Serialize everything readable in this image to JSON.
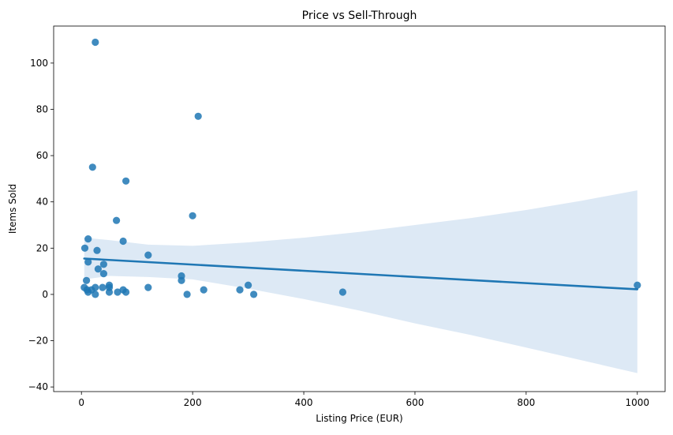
{
  "chart_data": {
    "type": "scatter",
    "title": "Price vs Sell-Through",
    "xlabel": "Listing Price (EUR)",
    "ylabel": "Items Sold",
    "xlim": [
      -50,
      1050
    ],
    "ylim": [
      -42,
      116
    ],
    "xticks": [
      0,
      200,
      400,
      600,
      800,
      1000
    ],
    "yticks": [
      -40,
      -20,
      0,
      20,
      40,
      60,
      80,
      100
    ],
    "grid": false,
    "colors": {
      "points": "#1f77b4",
      "regression_line": "#1f77b4",
      "confidence_band": "#c6dbef"
    },
    "series": [
      {
        "points": [
          {
            "x": 25,
            "y": 109
          },
          {
            "x": 210,
            "y": 77
          },
          {
            "x": 20,
            "y": 55
          },
          {
            "x": 80,
            "y": 49
          },
          {
            "x": 200,
            "y": 34
          },
          {
            "x": 63,
            "y": 32
          },
          {
            "x": 12,
            "y": 24
          },
          {
            "x": 75,
            "y": 23
          },
          {
            "x": 6,
            "y": 20
          },
          {
            "x": 28,
            "y": 19
          },
          {
            "x": 120,
            "y": 17
          },
          {
            "x": 12,
            "y": 14
          },
          {
            "x": 40,
            "y": 13
          },
          {
            "x": 30,
            "y": 11
          },
          {
            "x": 40,
            "y": 9
          },
          {
            "x": 180,
            "y": 8
          },
          {
            "x": 180,
            "y": 6
          },
          {
            "x": 9,
            "y": 6
          },
          {
            "x": 50,
            "y": 4
          },
          {
            "x": 300,
            "y": 4
          },
          {
            "x": 1000,
            "y": 4
          },
          {
            "x": 5,
            "y": 3
          },
          {
            "x": 25,
            "y": 3
          },
          {
            "x": 38,
            "y": 3
          },
          {
            "x": 50,
            "y": 3
          },
          {
            "x": 120,
            "y": 3
          },
          {
            "x": 10,
            "y": 2
          },
          {
            "x": 18,
            "y": 2
          },
          {
            "x": 75,
            "y": 2
          },
          {
            "x": 220,
            "y": 2
          },
          {
            "x": 285,
            "y": 2
          },
          {
            "x": 12,
            "y": 1
          },
          {
            "x": 50,
            "y": 1
          },
          {
            "x": 65,
            "y": 1
          },
          {
            "x": 80,
            "y": 1
          },
          {
            "x": 470,
            "y": 1
          },
          {
            "x": 25,
            "y": 0
          },
          {
            "x": 190,
            "y": 0
          },
          {
            "x": 310,
            "y": 0
          }
        ]
      }
    ],
    "regression": {
      "x": [
        5,
        1000
      ],
      "y": [
        15.5,
        2.2
      ]
    },
    "confidence_band": {
      "x": [
        5,
        50,
        120,
        200,
        300,
        400,
        500,
        600,
        700,
        800,
        900,
        1000
      ],
      "upper": [
        24.5,
        23.5,
        21.5,
        21,
        22.5,
        24.5,
        27,
        30,
        33,
        36.5,
        40.5,
        45
      ],
      "lower": [
        6.5,
        8,
        7.5,
        6.5,
        2.5,
        -2,
        -7,
        -12.5,
        -17.5,
        -23,
        -28.5,
        -34
      ]
    }
  }
}
